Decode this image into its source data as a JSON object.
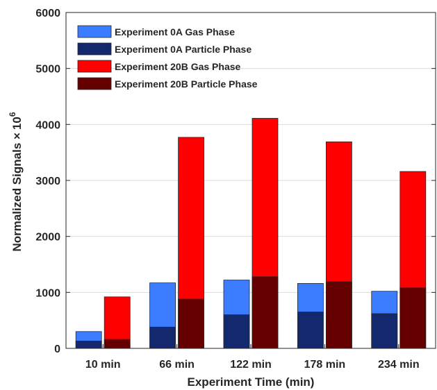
{
  "chart_data": {
    "type": "bar",
    "title": "",
    "xlabel": "Experiment Time (min)",
    "ylabel": "Normalized Signals ×",
    "ylabel_sup_base": "10",
    "ylabel_sup_exp": "6",
    "ylim": [
      0,
      6000
    ],
    "yticks": [
      0,
      1000,
      2000,
      3000,
      4000,
      5000,
      6000
    ],
    "grid": true,
    "legend_position": "top-left",
    "categories": [
      "10 min",
      "66 min",
      "122 min",
      "178 min",
      "234 min"
    ],
    "groups": [
      {
        "experiment": "0A",
        "gas": {
          "name": "Experiment 0A Gas Phase",
          "color": "#3c7dff",
          "values": [
            300,
            1170,
            1220,
            1160,
            1020
          ]
        },
        "particle": {
          "name": "Experiment 0A Particle Phase",
          "color": "#14286e",
          "values": [
            130,
            380,
            600,
            650,
            620
          ]
        }
      },
      {
        "experiment": "20B",
        "gas": {
          "name": "Experiment 20B Gas Phase",
          "color": "#ff0000",
          "values": [
            920,
            3770,
            4110,
            3690,
            3160
          ]
        },
        "particle": {
          "name": "Experiment 20B Particle Phase",
          "color": "#660000",
          "values": [
            160,
            880,
            1280,
            1190,
            1080
          ]
        }
      }
    ]
  }
}
